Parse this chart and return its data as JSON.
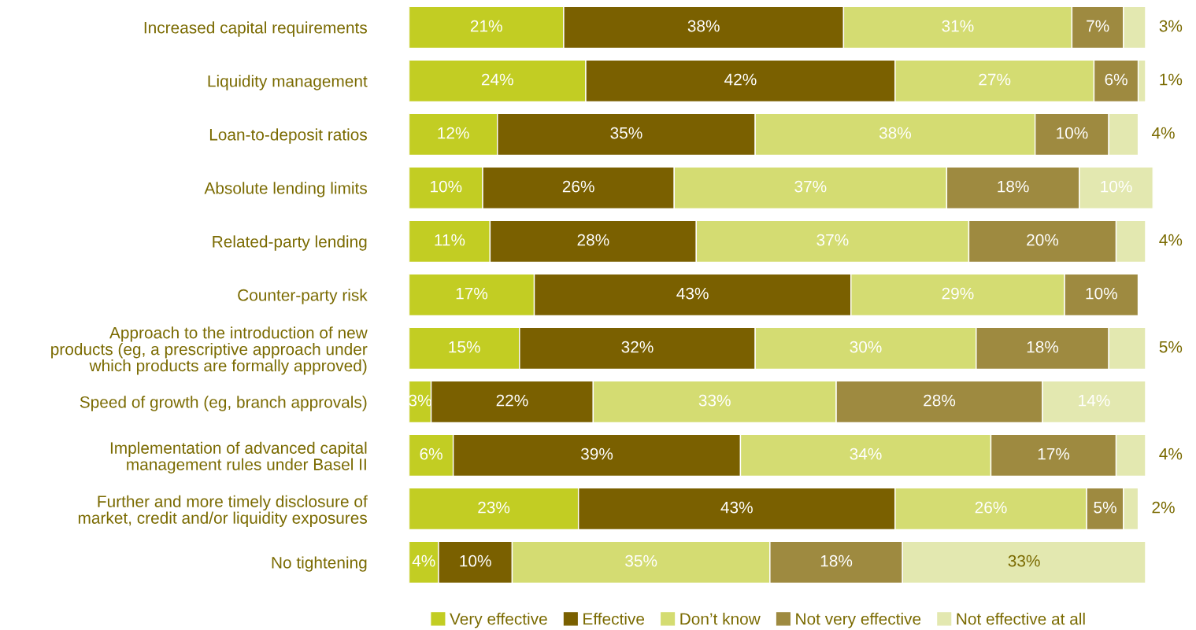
{
  "chart_data": {
    "type": "bar",
    "orientation": "horizontal",
    "stacked": true,
    "tick_labels": "y",
    "grid": false,
    "legend": "bottom",
    "categories": [
      "Increased capital requirements",
      "Liquidity management",
      "Loan-to-deposit ratios",
      "Absolute lending limits",
      "Related-party lending",
      "Counter-party risk",
      "Approach to the introduction of new\nproducts (eg, a prescriptive approach under\nwhich products are formally approved)",
      "Speed of growth (eg, branch approvals)",
      "Implementation of advanced capital\nmanagement rules under Basel II",
      "Further and more timely disclosure of\nmarket, credit and/or liquidity exposures",
      "No tightening"
    ],
    "series": [
      {
        "name": "Very effective",
        "color": "#c2cd23",
        "values": [
          21,
          24,
          12,
          10,
          11,
          17,
          15,
          3,
          6,
          23,
          4
        ],
        "value_labels": [
          "21%",
          "24%",
          "12%",
          "10%",
          "11%",
          "17%",
          "15%",
          "3%",
          "6%",
          "23%",
          "4%"
        ]
      },
      {
        "name": "Effective",
        "color": "#7a6000",
        "values": [
          38,
          42,
          35,
          26,
          28,
          43,
          32,
          22,
          39,
          43,
          10
        ],
        "value_labels": [
          "38%",
          "42%",
          "35%",
          "26%",
          "28%",
          "43%",
          "32%",
          "22%",
          "39%",
          "43%",
          "10%"
        ]
      },
      {
        "name": "Don’t know",
        "color": "#d4dc72",
        "values": [
          31,
          27,
          38,
          37,
          37,
          29,
          30,
          33,
          34,
          26,
          35
        ],
        "value_labels": [
          "31%",
          "27%",
          "38%",
          "37%",
          "37%",
          "29%",
          "30%",
          "33%",
          "34%",
          "26%",
          "35%"
        ]
      },
      {
        "name": "Not very effective",
        "color": "#9e8a40",
        "values": [
          7,
          6,
          10,
          18,
          20,
          10,
          18,
          28,
          17,
          5,
          18
        ],
        "value_labels": [
          "7%",
          "6%",
          "10%",
          "18%",
          "20%",
          "10%",
          "18%",
          "28%",
          "17%",
          "5%",
          "18%"
        ]
      },
      {
        "name": "Not effective at all",
        "color": "#e3e8b0",
        "values": [
          3,
          1,
          4,
          10,
          4,
          null,
          5,
          14,
          4,
          2,
          33
        ],
        "value_labels": [
          "3%",
          "1%",
          "4%",
          "10%",
          "4%",
          null,
          "5%",
          "14%",
          "4%",
          "2%",
          "33%"
        ]
      }
    ]
  }
}
